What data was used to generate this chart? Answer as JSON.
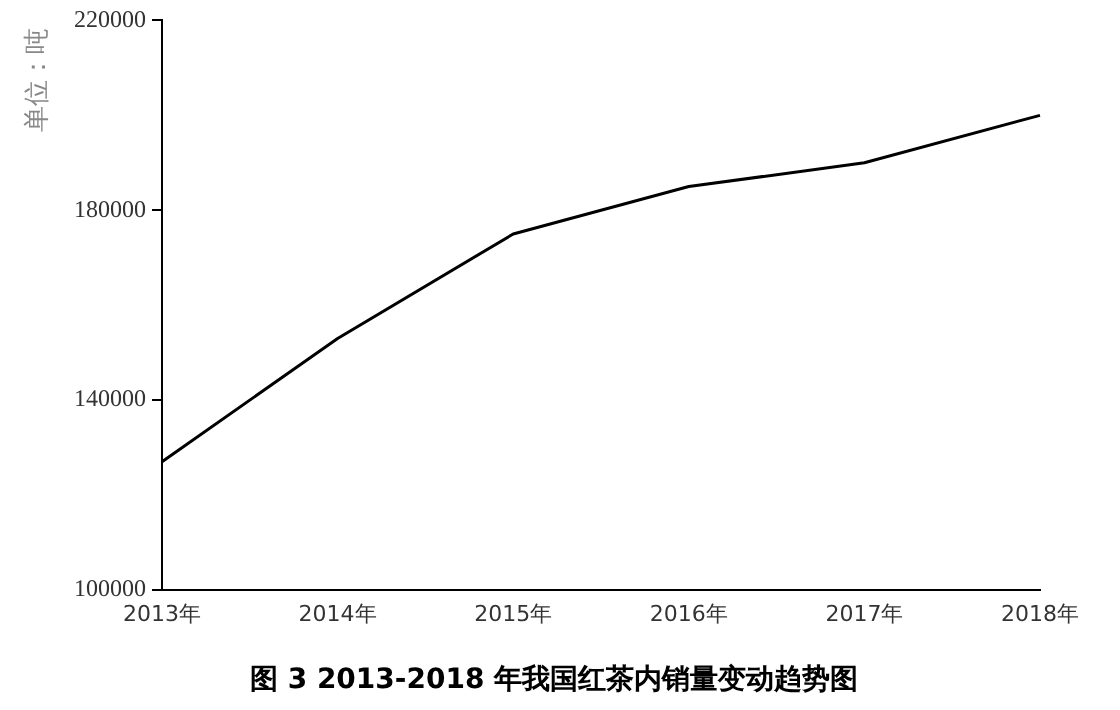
{
  "chart_data": {
    "type": "line",
    "title": "图 3 2013-2018 年我国红茶内销量变动趋势图",
    "ylabel": "单位：吨",
    "categories": [
      "2013年",
      "2014年",
      "2015年",
      "2016年",
      "2017年",
      "2018年"
    ],
    "series": [
      {
        "color": "#000000",
        "values": [
          127000,
          153000,
          175000,
          185000,
          190000,
          200000
        ]
      }
    ],
    "ylim": [
      100000,
      220000
    ],
    "yticks": [
      100000,
      140000,
      180000,
      220000
    ],
    "grid": false,
    "legend": false,
    "marker": "none",
    "line_style": "solid"
  }
}
